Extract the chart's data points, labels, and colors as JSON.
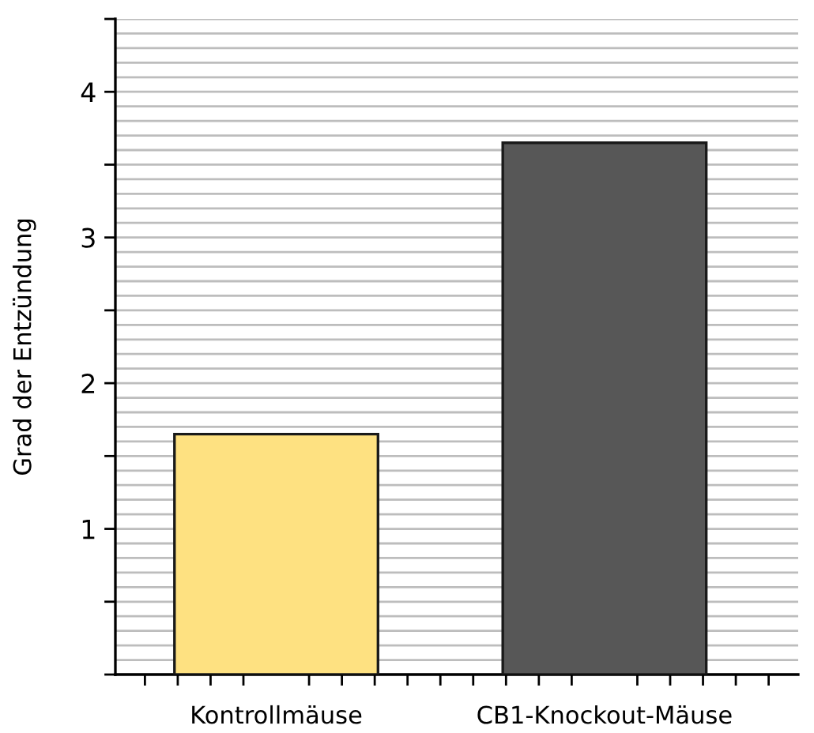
{
  "chart_data": {
    "type": "bar",
    "ylabel": "Grad der Entzündung",
    "categories": [
      "Kontrollmäuse",
      "CB1-Knockout-Mäuse"
    ],
    "values": [
      1.65,
      3.65
    ],
    "colors": [
      "#fee181",
      "#575757"
    ],
    "ylim": [
      0,
      4.5
    ],
    "yticks": [
      {
        "value": 0,
        "label": null
      },
      {
        "value": 0.5,
        "label": null
      },
      1,
      {
        "value": 1.5,
        "label": null
      },
      2,
      {
        "value": 2.5,
        "label": null
      },
      3,
      {
        "value": 3.5,
        "label": null
      },
      4,
      {
        "value": 4.5,
        "label": null
      }
    ],
    "grid": "y",
    "legend": false
  }
}
